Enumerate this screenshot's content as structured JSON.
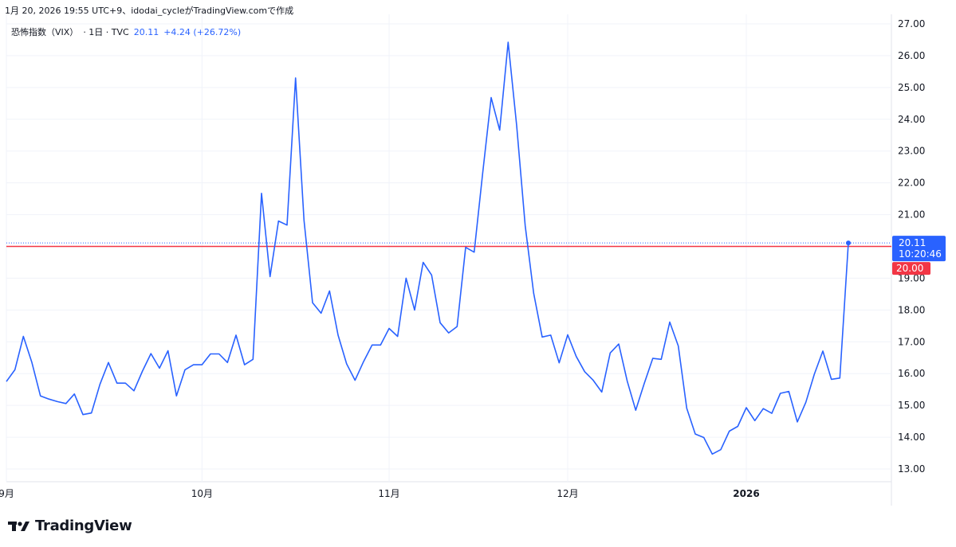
{
  "caption": "1月 20, 2026 19:55 UTC+9、idodai_cycleがTradingView.comで作成",
  "legend": {
    "symbol": "恐怖指数（VIX）",
    "meta": "· 1日 · TVC",
    "price": "20.11",
    "change": "+4.24 (+26.72%)"
  },
  "brand": {
    "name": "TradingView",
    "icon": "tradingview-logo-icon"
  },
  "colors": {
    "line": "#2962ff",
    "level": "#f23645",
    "grid": "#f0f3fa",
    "text": "#131722"
  },
  "price_badge": {
    "value": "20.11",
    "countdown": "10:20:46"
  },
  "level_badge": {
    "value": "20.00"
  },
  "chart_data": {
    "type": "line",
    "ylim": [
      12.6,
      27.3
    ],
    "y_ticks": [
      "13.00",
      "14.00",
      "15.00",
      "16.00",
      "17.00",
      "18.00",
      "19.00",
      "20.00",
      "21.00",
      "22.00",
      "23.00",
      "24.00",
      "25.00",
      "26.00",
      "27.00"
    ],
    "x_ticks": [
      {
        "label": "9月",
        "index": 0
      },
      {
        "label": "10月",
        "index": 23
      },
      {
        "label": "11月",
        "index": 45
      },
      {
        "label": "12月",
        "index": 66
      },
      {
        "label": "2026",
        "index": 87
      }
    ],
    "horizontal_line": 20.0,
    "series": [
      {
        "values": [
          15.75,
          16.12,
          17.17,
          16.35,
          15.3,
          15.2,
          15.12,
          15.06,
          15.36,
          14.71,
          14.76,
          15.66,
          16.35,
          15.7,
          15.7,
          15.46,
          16.08,
          16.63,
          16.17,
          16.72,
          15.3,
          16.12,
          16.28,
          16.28,
          16.62,
          16.62,
          16.35,
          17.21,
          16.28,
          16.45,
          21.67,
          19.05,
          20.8,
          20.67,
          25.3,
          20.82,
          18.23,
          17.9,
          18.6,
          17.21,
          16.31,
          15.79,
          16.38,
          16.9,
          16.9,
          17.42,
          17.17,
          19.0,
          18.0,
          19.5,
          19.1,
          17.6,
          17.28,
          17.48,
          19.97,
          19.82,
          22.29,
          24.68,
          23.66,
          26.42,
          23.8,
          20.65,
          18.53,
          17.15,
          17.21,
          16.34,
          17.22,
          16.54,
          16.06,
          15.79,
          15.42,
          16.65,
          16.93,
          15.76,
          14.85,
          15.69,
          16.48,
          16.45,
          17.62,
          16.87,
          14.91,
          14.1,
          13.99,
          13.47,
          13.61,
          14.19,
          14.34,
          14.93,
          14.52,
          14.9,
          14.75,
          15.38,
          15.44,
          14.48,
          15.1,
          15.98,
          16.71,
          15.82,
          15.86,
          20.11
        ]
      }
    ]
  }
}
